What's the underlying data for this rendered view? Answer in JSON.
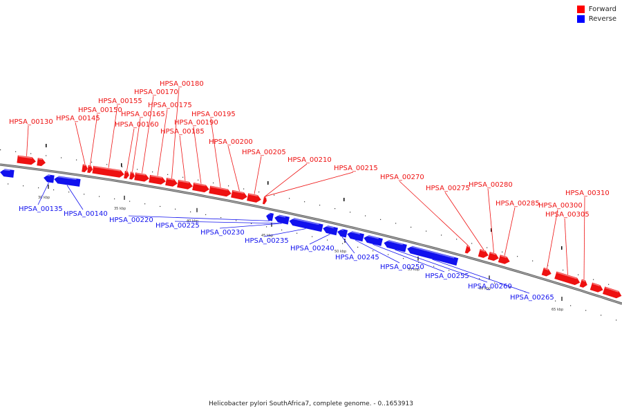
{
  "legend": {
    "forward": {
      "label": "Forward",
      "color": "#ff0000"
    },
    "reverse": {
      "label": "Reverse",
      "color": "#0000ff"
    }
  },
  "caption": "Helicobacter pylori SouthAfrica7, complete genome. - 0..1653913",
  "colors": {
    "forward": "#ee1111",
    "reverse": "#1111ee",
    "backbone": "#777777",
    "ticks": "#000000"
  },
  "scale": {
    "tick_labels": [
      "30 kbp",
      "35 kbp",
      "40 kbp",
      "45 kbp",
      "50 kbp",
      "55 kbp",
      "60 kbp",
      "65 kbp"
    ]
  },
  "genes": {
    "forward": [
      "HPSA_00130",
      "HPSA_00145",
      "HPSA_00150",
      "HPSA_00155",
      "HPSA_00160",
      "HPSA_00165",
      "HPSA_00170",
      "HPSA_00175",
      "HPSA_00180",
      "HPSA_00185",
      "HPSA_00190",
      "HPSA_00195",
      "HPSA_00200",
      "HPSA_00205",
      "HPSA_00210",
      "HPSA_00215",
      "HPSA_00270",
      "HPSA_00275",
      "HPSA_00280",
      "HPSA_00285",
      "HPSA_00300",
      "HPSA_00305",
      "HPSA_00310"
    ],
    "reverse": [
      "HPSA_00135",
      "HPSA_00140",
      "HPSA_00220",
      "HPSA_00225",
      "HPSA_00230",
      "HPSA_00235",
      "HPSA_00240",
      "HPSA_00245",
      "HPSA_00250",
      "HPSA_00255",
      "HPSA_00260",
      "HPSA_00265"
    ]
  }
}
